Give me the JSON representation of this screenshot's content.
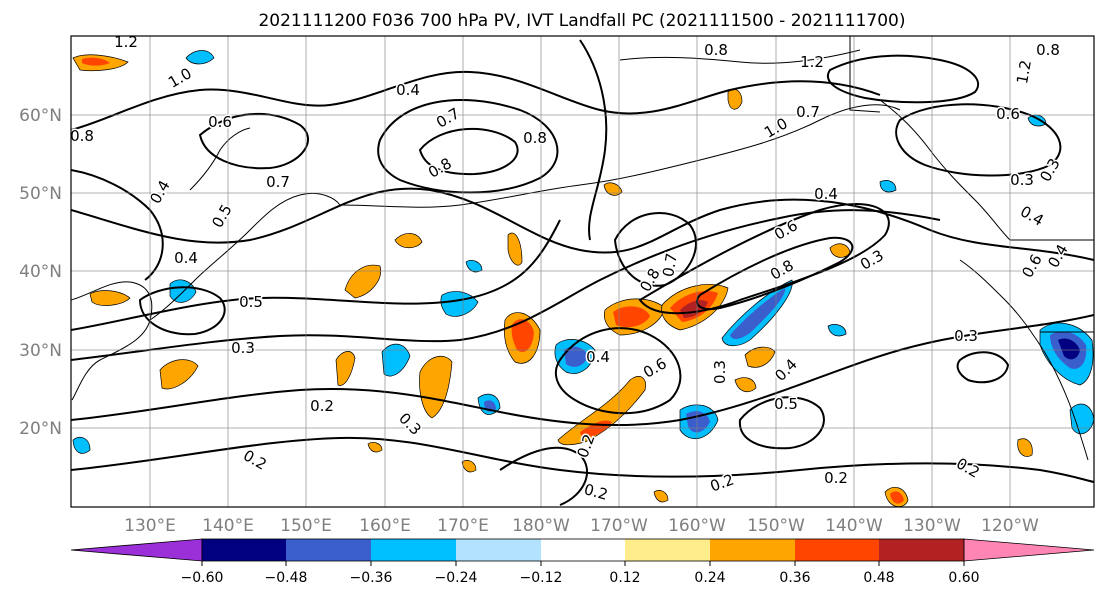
{
  "title": "2021111200 F036 700 hPa PV, IVT Landfall PC (2021111500 - 2021111700)",
  "lat_labels": [
    "60°N",
    "50°N",
    "40°N",
    "30°N",
    "20°N"
  ],
  "lon_labels": [
    "130°E",
    "140°E",
    "150°E",
    "160°E",
    "170°E",
    "180°W",
    "170°W",
    "160°W",
    "150°W",
    "140°W",
    "130°W",
    "120°W"
  ],
  "colorbar": {
    "colors": [
      "#9b30d9",
      "#000080",
      "#3a5fcd",
      "#00bfff",
      "#b3e2ff",
      "#ffffff",
      "#ffec8b",
      "#ffa500",
      "#ff4500",
      "#b22222",
      "#ff85b4"
    ],
    "tick_labels": [
      "−0.60",
      "−0.48",
      "−0.36",
      "−0.24",
      "−0.12",
      "0.12",
      "0.24",
      "0.36",
      "0.48",
      "0.60"
    ]
  },
  "contour_labels": [
    "1.2",
    "1.0",
    "0.6",
    "0.8",
    "0.4",
    "0.7",
    "0.8",
    "0.8",
    "0.7",
    "0.5",
    "0.4",
    "0.4",
    "0.5",
    "0.3",
    "0.2",
    "0.3",
    "0.2",
    "0.4",
    "0.6",
    "0.8",
    "0.7",
    "0.8",
    "0.6",
    "0.4",
    "0.3",
    "0.5",
    "0.4",
    "0.2",
    "0.2",
    "0.2",
    "0.3",
    "0.8",
    "1.2",
    "1.0",
    "0.7",
    "0.6",
    "0.3",
    "0.4",
    "0.3",
    "0.2",
    "0.2",
    "1.2",
    "0.8",
    "0.6",
    "0.4",
    "0.3"
  ]
}
